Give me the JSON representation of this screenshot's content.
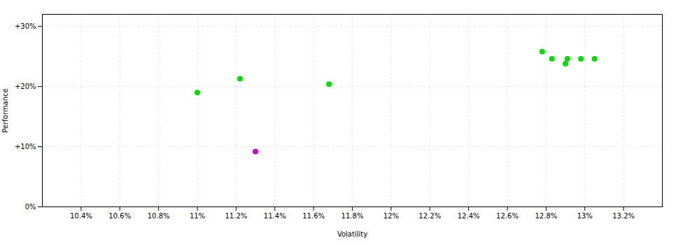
{
  "chart_data": {
    "type": "scatter",
    "xlabel": "Volatility",
    "ylabel": "Performance",
    "xlim": [
      0.102,
      0.134
    ],
    "ylim": [
      0.0,
      0.32
    ],
    "xticks": [
      {
        "value": 0.104,
        "label": "10.4%"
      },
      {
        "value": 0.106,
        "label": "10.6%"
      },
      {
        "value": 0.108,
        "label": "10.8%"
      },
      {
        "value": 0.11,
        "label": "11%"
      },
      {
        "value": 0.112,
        "label": "11.2%"
      },
      {
        "value": 0.114,
        "label": "11.4%"
      },
      {
        "value": 0.116,
        "label": "11.6%"
      },
      {
        "value": 0.118,
        "label": "11.8%"
      },
      {
        "value": 0.12,
        "label": "12%"
      },
      {
        "value": 0.122,
        "label": "12.2%"
      },
      {
        "value": 0.124,
        "label": "12.4%"
      },
      {
        "value": 0.126,
        "label": "12.6%"
      },
      {
        "value": 0.128,
        "label": "12.8%"
      },
      {
        "value": 0.13,
        "label": "13%"
      },
      {
        "value": 0.132,
        "label": "13.2%"
      }
    ],
    "yticks": [
      {
        "value": 0.0,
        "label": "0%"
      },
      {
        "value": 0.1,
        "label": "+10%"
      },
      {
        "value": 0.2,
        "label": "+20%"
      },
      {
        "value": 0.3,
        "label": "+30%"
      }
    ],
    "grid": true,
    "series": [
      {
        "color": "#00dd00",
        "x": [
          0.11,
          0.1122,
          0.1168,
          0.1278,
          0.1283,
          0.1291,
          0.1298,
          0.1305,
          0.129
        ],
        "values": [
          0.19,
          0.213,
          0.204,
          0.258,
          0.246,
          0.246,
          0.246,
          0.246,
          0.238
        ]
      },
      {
        "color": "#cc00cc",
        "x": [
          0.113
        ],
        "values": [
          0.092
        ]
      }
    ]
  }
}
